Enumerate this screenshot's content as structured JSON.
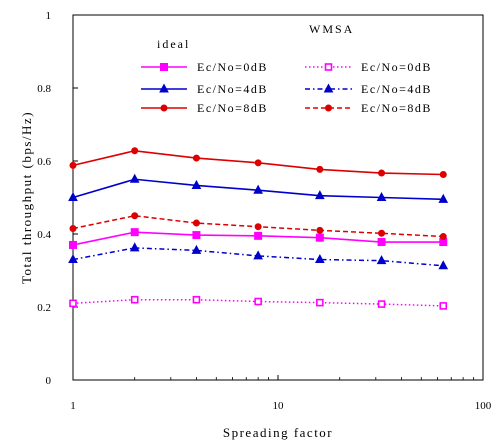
{
  "chart_data": {
    "type": "line",
    "xlabel": "Spreading factor",
    "ylabel": "Total throughput (bps/Hz)",
    "xscale": "log",
    "xlim": [
      1,
      100
    ],
    "ylim": [
      0,
      1
    ],
    "xticks": [
      {
        "value": 1,
        "label": "1"
      },
      {
        "value": 10,
        "label": "10"
      },
      {
        "value": 100,
        "label": "100"
      }
    ],
    "yticks": [
      {
        "value": 0,
        "label": "0"
      },
      {
        "value": 0.2,
        "label": "0.2"
      },
      {
        "value": 0.4,
        "label": "0.4"
      },
      {
        "value": 0.6,
        "label": "0.6"
      },
      {
        "value": 0.8,
        "label": "0.8"
      },
      {
        "value": 1,
        "label": "1"
      }
    ],
    "grid": false,
    "legend_placement": "top-right",
    "legend_headers": {
      "left": "ideal",
      "right": "WMSA"
    },
    "x": [
      1,
      2,
      4,
      8,
      16,
      32,
      64
    ],
    "series": [
      {
        "name": "Ec/No=0dB",
        "group": "ideal",
        "color": "#ff00ff",
        "marker": "square-filled",
        "dash": "solid",
        "values": [
          0.37,
          0.405,
          0.397,
          0.395,
          0.39,
          0.378,
          0.378
        ]
      },
      {
        "name": "Ec/No=4dB",
        "group": "ideal",
        "color": "#0000cc",
        "marker": "triangle-filled",
        "dash": "solid",
        "values": [
          0.5,
          0.55,
          0.533,
          0.52,
          0.505,
          0.5,
          0.495
        ]
      },
      {
        "name": "Ec/No=8dB",
        "group": "ideal",
        "color": "#dd0000",
        "marker": "circle-filled",
        "dash": "solid",
        "values": [
          0.588,
          0.628,
          0.608,
          0.595,
          0.577,
          0.567,
          0.563
        ]
      },
      {
        "name": "Ec/No=0dB",
        "group": "WMSA",
        "color": "#ff00ff",
        "marker": "square-open",
        "dash": "dotted",
        "values": [
          0.21,
          0.22,
          0.22,
          0.215,
          0.212,
          0.208,
          0.203
        ]
      },
      {
        "name": "Ec/No=4dB",
        "group": "WMSA",
        "color": "#0000cc",
        "marker": "triangle-filled",
        "dash": "dashdot",
        "values": [
          0.33,
          0.362,
          0.355,
          0.34,
          0.33,
          0.327,
          0.313
        ]
      },
      {
        "name": "Ec/No=8dB",
        "group": "WMSA",
        "color": "#dd0000",
        "marker": "circle-filled",
        "dash": "dashed",
        "values": [
          0.415,
          0.45,
          0.43,
          0.42,
          0.41,
          0.402,
          0.393
        ]
      }
    ]
  }
}
